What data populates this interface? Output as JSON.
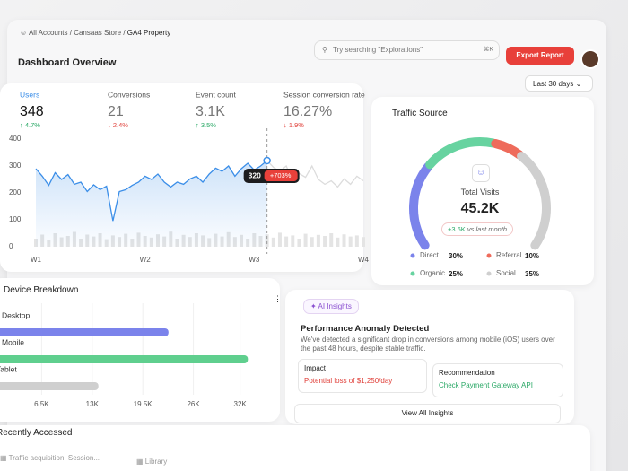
{
  "header": {
    "breadcrumb": [
      "All Accounts",
      "Cansaas Store",
      "GA4 Property"
    ],
    "search_placeholder": "Try searching \"Explorations\"",
    "search_shortcut": "⌘K",
    "export_button": "Export Report"
  },
  "page_title": "Dashboard Overview",
  "date_range": "Last 30 days",
  "overview": {
    "metrics": [
      {
        "label": "Users",
        "value": "348",
        "change": "↑ 4.7%"
      },
      {
        "label": "Conversions",
        "value": "21",
        "change": "↓ 2.4%"
      },
      {
        "label": "Event count",
        "value": "3.1K",
        "change": "↑ 3.5%"
      },
      {
        "label": "Session conversion rate",
        "value": "16.27%",
        "change": "↓ 1.9%"
      }
    ],
    "chart": {
      "type": "line",
      "ylim": [
        0,
        400
      ],
      "yticks": [
        0,
        100,
        200,
        300,
        400
      ],
      "week_labels": [
        "W1",
        "W2",
        "W3",
        "W4"
      ],
      "series": [
        {
          "color": "#3b8ee8",
          "values": [
            290,
            262,
            228,
            275,
            250,
            268,
            232,
            240,
            205,
            230,
            212,
            225,
            96,
            205,
            212,
            228,
            240,
            262,
            250,
            270,
            240,
            222,
            240,
            232,
            252,
            262,
            240,
            270,
            292,
            280,
            300,
            262,
            290,
            310,
            285,
            300,
            320,
            null,
            null,
            null,
            null,
            null,
            null,
            null,
            null,
            null,
            null,
            null,
            null,
            null,
            null,
            null
          ]
        },
        {
          "color": "#dcdcdc",
          "values": [
            null,
            null,
            null,
            null,
            null,
            null,
            null,
            null,
            null,
            null,
            null,
            null,
            null,
            null,
            null,
            null,
            null,
            null,
            null,
            null,
            null,
            null,
            null,
            null,
            null,
            null,
            null,
            null,
            null,
            null,
            null,
            null,
            null,
            null,
            null,
            null,
            320,
            295,
            280,
            300,
            242,
            272,
            258,
            300,
            250,
            232,
            245,
            222,
            252,
            232,
            262,
            245
          ]
        }
      ],
      "activity": {
        "color": "#e4e4e4",
        "values": [
          30,
          45,
          25,
          50,
          35,
          40,
          55,
          30,
          45,
          38,
          50,
          28,
          42,
          36,
          48,
          30,
          52,
          40,
          34,
          46,
          38,
          56,
          30,
          44,
          36,
          50,
          42,
          32,
          48,
          38,
          54,
          36,
          44,
          30,
          50,
          40,
          46,
          34,
          52,
          38,
          42,
          30,
          48,
          36,
          44,
          40,
          50,
          34,
          46,
          38,
          42,
          36
        ]
      },
      "tooltip": {
        "value": "320",
        "change": "+703%"
      }
    }
  },
  "traffic": {
    "title": "Traffic Source",
    "type": "gauge",
    "total_label": "Total Visits",
    "total_value": "45.2K",
    "change": "+3.6K",
    "change_suffix": "vs last month",
    "segments": [
      {
        "name": "Direct",
        "value": 30,
        "value_label": "30%",
        "color": "#7b83eb"
      },
      {
        "name": "Organic",
        "value": 25,
        "value_label": "25%",
        "color": "#67d3a0"
      },
      {
        "name": "Referral",
        "value": 10,
        "value_label": "10%",
        "color": "#ee6b5b"
      },
      {
        "name": "Social",
        "value": 35,
        "value_label": "35%",
        "color": "#cfcfcf"
      }
    ]
  },
  "device": {
    "title": "Device Breakdown",
    "type": "bar",
    "categories": [
      "Desktop",
      "Mobile",
      "Tablet"
    ],
    "values": [
      22800,
      33000,
      13800
    ],
    "colors": [
      "#7b83eb",
      "#5fcf8e",
      "#cfcfcf"
    ],
    "xlim": [
      0,
      34000
    ],
    "xticks": [
      {
        "value": 6500,
        "label": "6.5K"
      },
      {
        "value": 13000,
        "label": "13K"
      },
      {
        "value": 19500,
        "label": "19.5K"
      },
      {
        "value": 26000,
        "label": "26K"
      },
      {
        "value": 32000,
        "label": "32K"
      }
    ]
  },
  "insights": {
    "badge": "AI Insights",
    "title": "Performance Anomaly Detected",
    "description": "We've detected a significant drop in conversions among mobile (iOS) users over the past 48 hours, despite stable traffic.",
    "impact": {
      "label": "Impact",
      "text": "Potential loss of $1,250/day"
    },
    "recommendation": {
      "label": "Recommendation",
      "text": "Check Payment Gateway API"
    },
    "button": "View All Insights"
  },
  "recent": {
    "title": "Recently Accessed",
    "items": [
      "Traffic acquisition: Session...",
      "Library"
    ]
  }
}
